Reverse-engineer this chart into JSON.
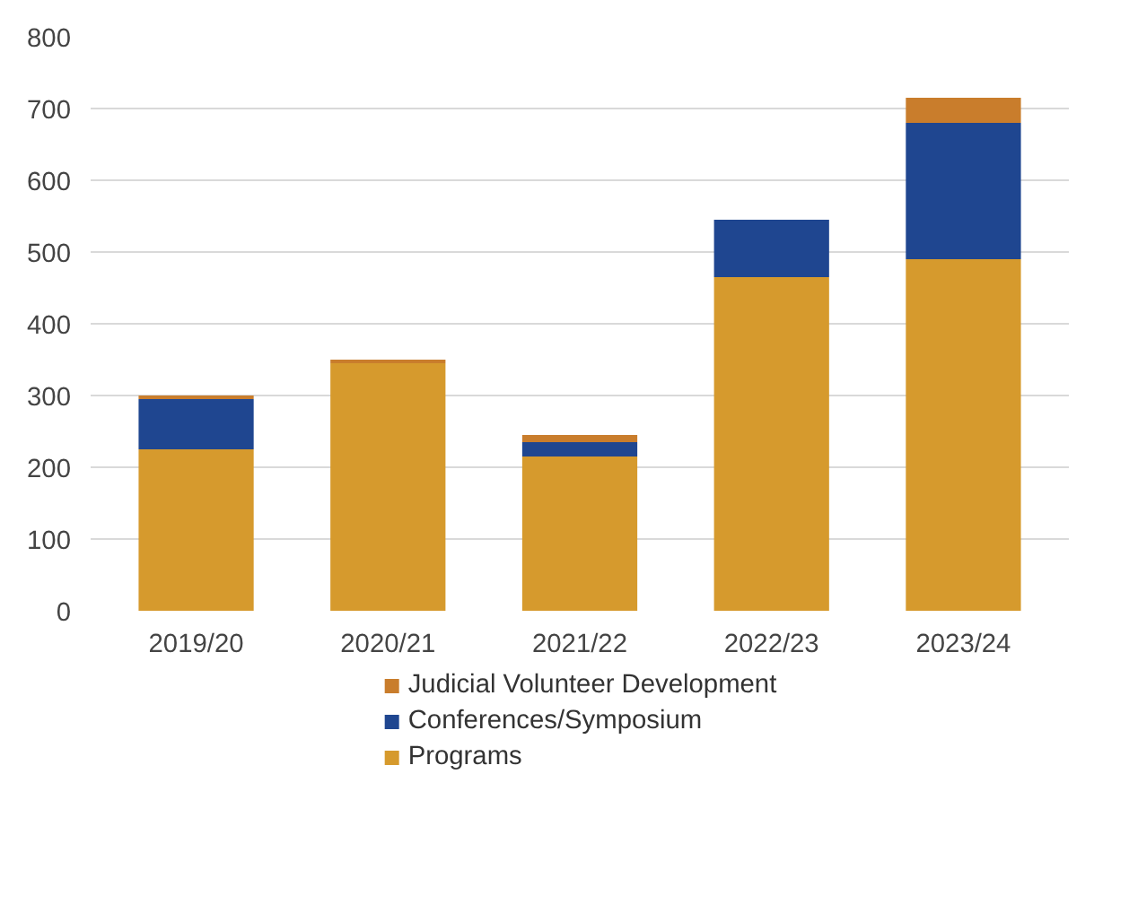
{
  "chart_data": {
    "type": "bar",
    "stacked": true,
    "categories": [
      "2019/20",
      "2020/21",
      "2021/22",
      "2022/23",
      "2023/24"
    ],
    "series": [
      {
        "name": "Programs",
        "color": "#d69a2d",
        "values": [
          225,
          345,
          215,
          465,
          490
        ]
      },
      {
        "name": "Conferences/Symposium",
        "color": "#1f4690",
        "values": [
          70,
          0,
          20,
          80,
          190
        ]
      },
      {
        "name": "Judicial Volunteer Development",
        "color": "#c97d2c",
        "values": [
          5,
          5,
          10,
          0,
          35
        ]
      }
    ],
    "ylim": [
      0,
      800
    ],
    "yticks": [
      0,
      100,
      200,
      300,
      400,
      500,
      600,
      700,
      800
    ],
    "grid": "y",
    "legend": "bottom"
  }
}
